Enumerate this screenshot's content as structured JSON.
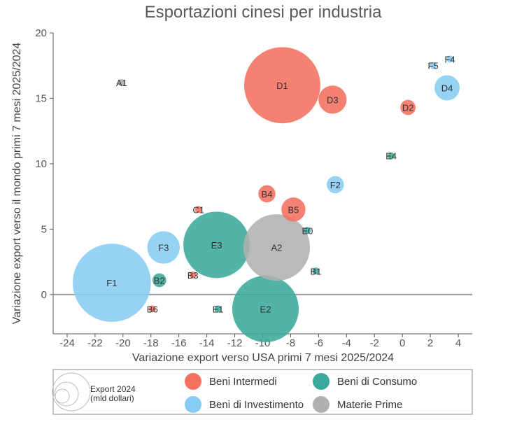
{
  "chart_data": {
    "type": "scatter",
    "title": "Esportazioni cinesi per industria",
    "xlabel": "Variazione export verso USA primi 7 mesi 2025/2024",
    "ylabel": "Variazione export verso il mondo primi 7 mesi 2025/2024",
    "xlim": [
      -25,
      5
    ],
    "ylim": [
      -3,
      20
    ],
    "x_ticks": [
      "-24",
      "-22",
      "-20",
      "-18",
      "-16",
      "-14",
      "-12",
      "-10",
      "-8",
      "-6",
      "-4",
      "-2",
      "0",
      "2",
      "4"
    ],
    "y_ticks": [
      "0",
      "5",
      "10",
      "15",
      "20"
    ],
    "size_legend": {
      "line1": "Export 2024",
      "line2": "(mld dollari)"
    },
    "series": [
      {
        "name": "Beni Intermedi",
        "color": "#f4705f",
        "points": [
          {
            "label": "D1",
            "x": -8.6,
            "y": 16.0,
            "size": 550
          },
          {
            "label": "D3",
            "x": -5.0,
            "y": 14.9,
            "size": 75
          },
          {
            "label": "D2",
            "x": 0.4,
            "y": 14.3,
            "size": 22
          },
          {
            "label": "B4",
            "x": -9.7,
            "y": 7.7,
            "size": 28
          },
          {
            "label": "B5",
            "x": -7.8,
            "y": 6.5,
            "size": 55
          },
          {
            "label": "C1",
            "x": -14.6,
            "y": 6.5,
            "size": 3
          },
          {
            "label": "B3",
            "x": -15.0,
            "y": 1.5,
            "size": 3
          },
          {
            "label": "B6",
            "x": -17.9,
            "y": -1.1,
            "size": 3
          }
        ]
      },
      {
        "name": "Beni di Consumo",
        "color": "#3aaa9a",
        "points": [
          {
            "label": "E3",
            "x": -13.3,
            "y": 3.8,
            "size": 420
          },
          {
            "label": "E2",
            "x": -9.8,
            "y": -1.1,
            "size": 420
          },
          {
            "label": "E4",
            "x": -0.8,
            "y": 10.6,
            "size": 2.5
          },
          {
            "label": "E0",
            "x": -6.8,
            "y": 4.9,
            "size": 2.5
          },
          {
            "label": "B1",
            "x": -6.2,
            "y": 1.8,
            "size": 3
          },
          {
            "label": "B2",
            "x": -17.4,
            "y": 1.1,
            "size": 18
          },
          {
            "label": "E1",
            "x": -13.2,
            "y": -1.1,
            "size": 3
          }
        ]
      },
      {
        "name": "Beni di Investimento",
        "color": "#87ccf2",
        "points": [
          {
            "label": "F1",
            "x": -20.8,
            "y": 0.9,
            "size": 580
          },
          {
            "label": "F3",
            "x": -17.1,
            "y": 3.6,
            "size": 100
          },
          {
            "label": "F2",
            "x": -4.8,
            "y": 8.4,
            "size": 28
          },
          {
            "label": "D4",
            "x": 3.2,
            "y": 15.8,
            "size": 60
          },
          {
            "label": "F4",
            "x": 3.4,
            "y": 18.0,
            "size": 3
          },
          {
            "label": "F5",
            "x": 2.2,
            "y": 17.5,
            "size": 3
          }
        ]
      },
      {
        "name": "Materie Prime",
        "color": "#b0b0b0",
        "points": [
          {
            "label": "A2",
            "x": -9.0,
            "y": 3.6,
            "size": 420
          },
          {
            "label": "A1",
            "x": -20.1,
            "y": 16.2,
            "size": 3
          }
        ]
      }
    ],
    "grid": false,
    "legend_position": "bottom"
  }
}
